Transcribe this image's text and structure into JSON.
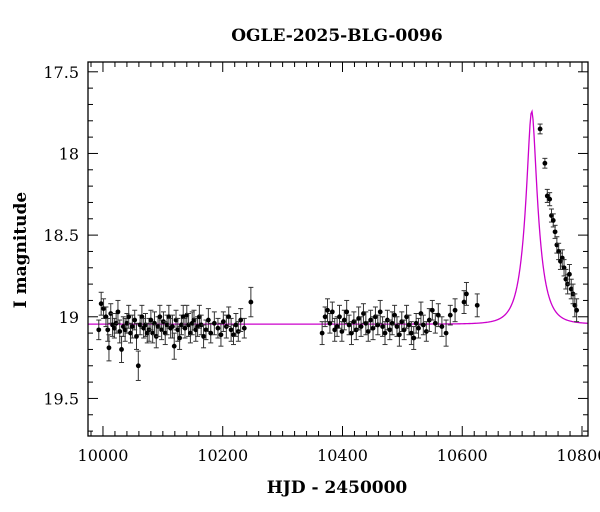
{
  "chart_data": {
    "type": "scatter",
    "title": "OGLE-2025-BLG-0096",
    "xlabel": "HJD - 2450000",
    "ylabel": "I magnitude",
    "xlim": [
      9975,
      10810
    ],
    "ylim": [
      19.73,
      17.44
    ],
    "y_inverted": true,
    "grid": false,
    "x_ticks": [
      10000,
      10200,
      10400,
      10600,
      10800
    ],
    "x_tick_labels": [
      "10000",
      "10200",
      "10400",
      "10600",
      "10800"
    ],
    "y_ticks": [
      17.5,
      18,
      18.5,
      19,
      19.5
    ],
    "y_tick_labels": [
      "17.5",
      "18",
      "18.5",
      "19",
      "19.5"
    ],
    "colors": {
      "model": "#cc00cc",
      "points": "#000000",
      "axes": "#000000"
    },
    "model": {
      "name": "",
      "baseline_mag": 19.045,
      "peak_time": 10716,
      "peak_mag": 17.74,
      "einstein_time": 22,
      "impact_parameter": 0.3
    },
    "series": [
      {
        "name": "",
        "points": [
          [
            9993,
            19.08,
            0.06
          ],
          [
            9997,
            18.92,
            0.07
          ],
          [
            10001,
            18.95,
            0.06
          ],
          [
            10005,
            19.0,
            0.06
          ],
          [
            10008,
            19.08,
            0.07
          ],
          [
            10010,
            19.19,
            0.08
          ],
          [
            10013,
            18.98,
            0.06
          ],
          [
            10016,
            19.05,
            0.07
          ],
          [
            10019,
            19.07,
            0.06
          ],
          [
            10022,
            19.04,
            0.06
          ],
          [
            10025,
            18.97,
            0.07
          ],
          [
            10028,
            19.09,
            0.07
          ],
          [
            10031,
            19.2,
            0.08
          ],
          [
            10034,
            19.06,
            0.06
          ],
          [
            10037,
            19.08,
            0.07
          ],
          [
            10040,
            19.04,
            0.06
          ],
          [
            10043,
            19.0,
            0.07
          ],
          [
            10046,
            19.1,
            0.06
          ],
          [
            10049,
            19.06,
            0.07
          ],
          [
            10053,
            19.02,
            0.06
          ],
          [
            10056,
            19.12,
            0.08
          ],
          [
            10059,
            19.3,
            0.09
          ],
          [
            10062,
            19.05,
            0.06
          ],
          [
            10065,
            19.0,
            0.07
          ],
          [
            10068,
            19.07,
            0.06
          ],
          [
            10071,
            19.05,
            0.07
          ],
          [
            10074,
            19.1,
            0.06
          ],
          [
            10077,
            19.08,
            0.07
          ],
          [
            10080,
            19.02,
            0.06
          ],
          [
            10083,
            19.1,
            0.06
          ],
          [
            10086,
            19.04,
            0.07
          ],
          [
            10089,
            19.12,
            0.07
          ],
          [
            10092,
            19.06,
            0.06
          ],
          [
            10095,
            19.0,
            0.07
          ],
          [
            10098,
            19.08,
            0.06
          ],
          [
            10101,
            19.03,
            0.06
          ],
          [
            10104,
            19.1,
            0.07
          ],
          [
            10107,
            19.05,
            0.06
          ],
          [
            10110,
            19.0,
            0.07
          ],
          [
            10113,
            19.07,
            0.06
          ],
          [
            10116,
            19.06,
            0.07
          ],
          [
            10119,
            19.18,
            0.08
          ],
          [
            10122,
            19.02,
            0.06
          ],
          [
            10125,
            19.08,
            0.07
          ],
          [
            10128,
            19.13,
            0.07
          ],
          [
            10131,
            19.05,
            0.06
          ],
          [
            10134,
            19.0,
            0.07
          ],
          [
            10137,
            19.07,
            0.06
          ],
          [
            10140,
            18.99,
            0.06
          ],
          [
            10143,
            19.05,
            0.07
          ],
          [
            10146,
            19.1,
            0.06
          ],
          [
            10149,
            19.04,
            0.07
          ],
          [
            10152,
            19.02,
            0.06
          ],
          [
            10155,
            19.08,
            0.07
          ],
          [
            10158,
            19.06,
            0.06
          ],
          [
            10161,
            19.0,
            0.07
          ],
          [
            10164,
            19.05,
            0.06
          ],
          [
            10168,
            19.12,
            0.07
          ],
          [
            10172,
            19.08,
            0.06
          ],
          [
            10176,
            19.02,
            0.07
          ],
          [
            10180,
            19.1,
            0.06
          ],
          [
            10186,
            19.04,
            0.07
          ],
          [
            10192,
            19.07,
            0.06
          ],
          [
            10197,
            19.11,
            0.07
          ],
          [
            10201,
            19.03,
            0.06
          ],
          [
            10206,
            19.06,
            0.07
          ],
          [
            10210,
            19.0,
            0.06
          ],
          [
            10214,
            19.08,
            0.07
          ],
          [
            10218,
            19.11,
            0.06
          ],
          [
            10222,
            19.05,
            0.07
          ],
          [
            10226,
            19.09,
            0.06
          ],
          [
            10230,
            19.02,
            0.07
          ],
          [
            10236,
            19.07,
            0.06
          ],
          [
            10247,
            18.91,
            0.09
          ],
          [
            10366,
            19.1,
            0.07
          ],
          [
            10371,
            19.0,
            0.06
          ],
          [
            10375,
            18.96,
            0.07
          ],
          [
            10379,
            19.04,
            0.06
          ],
          [
            10383,
            18.97,
            0.06
          ],
          [
            10387,
            19.08,
            0.07
          ],
          [
            10391,
            19.06,
            0.06
          ],
          [
            10395,
            19.0,
            0.07
          ],
          [
            10399,
            19.09,
            0.06
          ],
          [
            10403,
            19.02,
            0.06
          ],
          [
            10407,
            18.97,
            0.07
          ],
          [
            10411,
            19.05,
            0.06
          ],
          [
            10415,
            19.1,
            0.07
          ],
          [
            10419,
            19.03,
            0.06
          ],
          [
            10423,
            19.08,
            0.06
          ],
          [
            10427,
            19.01,
            0.07
          ],
          [
            10431,
            19.06,
            0.06
          ],
          [
            10435,
            18.98,
            0.06
          ],
          [
            10439,
            19.04,
            0.07
          ],
          [
            10443,
            19.09,
            0.06
          ],
          [
            10447,
            19.02,
            0.06
          ],
          [
            10451,
            19.07,
            0.07
          ],
          [
            10455,
            19.0,
            0.06
          ],
          [
            10459,
            19.05,
            0.06
          ],
          [
            10463,
            18.97,
            0.07
          ],
          [
            10467,
            19.06,
            0.06
          ],
          [
            10471,
            19.1,
            0.07
          ],
          [
            10475,
            19.02,
            0.06
          ],
          [
            10479,
            19.08,
            0.06
          ],
          [
            10483,
            19.04,
            0.07
          ],
          [
            10487,
            18.99,
            0.06
          ],
          [
            10491,
            19.06,
            0.06
          ],
          [
            10495,
            19.11,
            0.07
          ],
          [
            10499,
            19.03,
            0.06
          ],
          [
            10503,
            19.08,
            0.06
          ],
          [
            10507,
            19.0,
            0.07
          ],
          [
            10511,
            19.05,
            0.06
          ],
          [
            10515,
            19.1,
            0.07
          ],
          [
            10519,
            19.13,
            0.07
          ],
          [
            10523,
            19.04,
            0.06
          ],
          [
            10527,
            19.07,
            0.06
          ],
          [
            10531,
            18.98,
            0.07
          ],
          [
            10535,
            19.05,
            0.06
          ],
          [
            10540,
            19.09,
            0.06
          ],
          [
            10545,
            19.02,
            0.07
          ],
          [
            10550,
            18.96,
            0.06
          ],
          [
            10555,
            19.04,
            0.06
          ],
          [
            10560,
            18.99,
            0.07
          ],
          [
            10566,
            19.06,
            0.06
          ],
          [
            10573,
            19.1,
            0.08
          ],
          [
            10580,
            18.99,
            0.06
          ],
          [
            10588,
            18.96,
            0.07
          ],
          [
            10603,
            18.91,
            0.07
          ],
          [
            10607,
            18.86,
            0.07
          ],
          [
            10625,
            18.93,
            0.07
          ],
          [
            10730,
            17.85,
            0.03
          ],
          [
            10738,
            18.06,
            0.03
          ],
          [
            10742,
            18.26,
            0.04
          ],
          [
            10746,
            18.28,
            0.04
          ],
          [
            10749,
            18.38,
            0.04
          ],
          [
            10752,
            18.41,
            0.04
          ],
          [
            10755,
            18.48,
            0.04
          ],
          [
            10758,
            18.56,
            0.05
          ],
          [
            10761,
            18.6,
            0.05
          ],
          [
            10764,
            18.66,
            0.05
          ],
          [
            10767,
            18.64,
            0.05
          ],
          [
            10770,
            18.7,
            0.05
          ],
          [
            10773,
            18.77,
            0.06
          ],
          [
            10776,
            18.8,
            0.06
          ],
          [
            10779,
            18.74,
            0.06
          ],
          [
            10782,
            18.83,
            0.06
          ],
          [
            10785,
            18.86,
            0.06
          ],
          [
            10788,
            18.93,
            0.07
          ],
          [
            10791,
            18.96,
            0.07
          ]
        ]
      }
    ]
  }
}
